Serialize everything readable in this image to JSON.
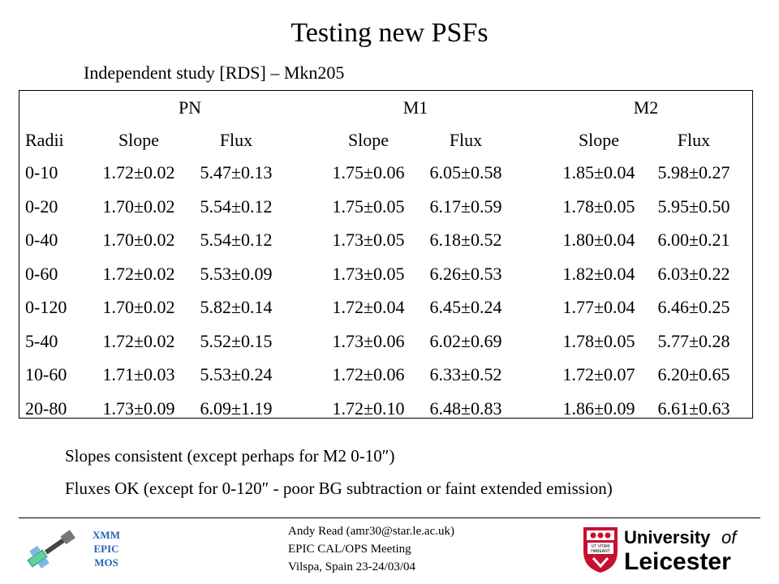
{
  "title": "Testing new PSFs",
  "subtitle": "Independent study [RDS] – Mkn205",
  "table": {
    "groups": [
      "PN",
      "M1",
      "M2"
    ],
    "radii_header": "Radii",
    "sub_headers": [
      "Slope",
      "Flux",
      "Slope",
      "Flux",
      "Slope",
      "Flux"
    ],
    "rows": [
      [
        "0-10",
        "1.72±0.02",
        "5.47±0.13",
        "1.75±0.06",
        "6.05±0.58",
        "1.85±0.04",
        "5.98±0.27"
      ],
      [
        "0-20",
        "1.70±0.02",
        "5.54±0.12",
        "1.75±0.05",
        "6.17±0.59",
        "1.78±0.05",
        "5.95±0.50"
      ],
      [
        "0-40",
        "1.70±0.02",
        "5.54±0.12",
        "1.73±0.05",
        "6.18±0.52",
        "1.80±0.04",
        "6.00±0.21"
      ],
      [
        "0-60",
        "1.72±0.02",
        "5.53±0.09",
        "1.73±0.05",
        "6.26±0.53",
        "1.82±0.04",
        "6.03±0.22"
      ],
      [
        "0-120",
        "1.70±0.02",
        "5.82±0.14",
        "1.72±0.04",
        "6.45±0.24",
        "1.77±0.04",
        "6.46±0.25"
      ],
      [
        "5-40",
        "1.72±0.02",
        "5.52±0.15",
        "1.73±0.06",
        "6.02±0.69",
        "1.78±0.05",
        "5.77±0.28"
      ],
      [
        "10-60",
        "1.71±0.03",
        "5.53±0.24",
        "1.72±0.06",
        "6.33±0.52",
        "1.72±0.07",
        "6.20±0.65"
      ],
      [
        "20-80",
        "1.73±0.09",
        "6.09±1.19",
        "1.72±0.10",
        "6.48±0.83",
        "1.86±0.09",
        "6.61±0.63"
      ]
    ]
  },
  "notes": [
    "Slopes consistent (except perhaps for M2 0-10″)",
    "Fluxes OK (except for 0-120″ - poor BG subtraction or faint extended emission)"
  ],
  "footer": {
    "lines": [
      "Andy Read (amr30@star.le.ac.uk)",
      "EPIC CAL/OPS Meeting",
      "Vilspa, Spain 23-24/03/04"
    ],
    "logo_lines": [
      "XMM",
      "EPIC",
      "MOS"
    ],
    "university": [
      "University",
      "of",
      "Leicester"
    ],
    "crest_motto": [
      "UT VITAM",
      "HABEANT"
    ]
  },
  "colors": {
    "logo_text": "#2a63b8",
    "crest_red": "#c8102e"
  },
  "icons": [
    "xmm-satellite-icon",
    "leicester-crest-icon"
  ]
}
